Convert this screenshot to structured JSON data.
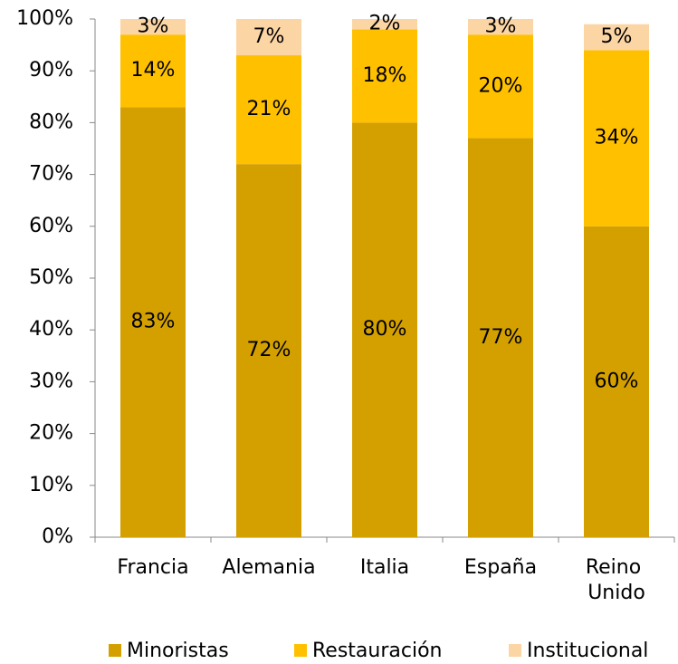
{
  "chart_data": {
    "type": "stacked_bar",
    "categories": [
      "Francia",
      "Alemania",
      "Italia",
      "España",
      "Reino Unido"
    ],
    "series": [
      {
        "name": "Minoristas",
        "color": "#d4a000",
        "values": [
          83,
          72,
          80,
          77,
          60
        ],
        "value_labels": [
          "83%",
          "72%",
          "80%",
          "77%",
          "60%"
        ]
      },
      {
        "name": "Restauración",
        "color": "#ffc000",
        "values": [
          14,
          21,
          18,
          20,
          34
        ],
        "value_labels": [
          "14%",
          "21%",
          "18%",
          "20%",
          "34%"
        ]
      },
      {
        "name": "Institucional",
        "color": "#fcd5a4",
        "values": [
          3,
          7,
          2,
          3,
          5
        ],
        "value_labels": [
          "3%",
          "7%",
          "2%",
          "3%",
          "5%"
        ]
      }
    ],
    "ylim": [
      0,
      100
    ],
    "yticks": [
      {
        "value": 0,
        "label": "0%"
      },
      {
        "value": 10,
        "label": "10%"
      },
      {
        "value": 20,
        "label": "20%"
      },
      {
        "value": 30,
        "label": "30%"
      },
      {
        "value": 40,
        "label": "40%"
      },
      {
        "value": 50,
        "label": "50%"
      },
      {
        "value": 60,
        "label": "60%"
      },
      {
        "value": 70,
        "label": "70%"
      },
      {
        "value": 80,
        "label": "80%"
      },
      {
        "value": 90,
        "label": "90%"
      },
      {
        "value": 100,
        "label": "100%"
      }
    ],
    "grid": false,
    "legend": "bottom"
  }
}
